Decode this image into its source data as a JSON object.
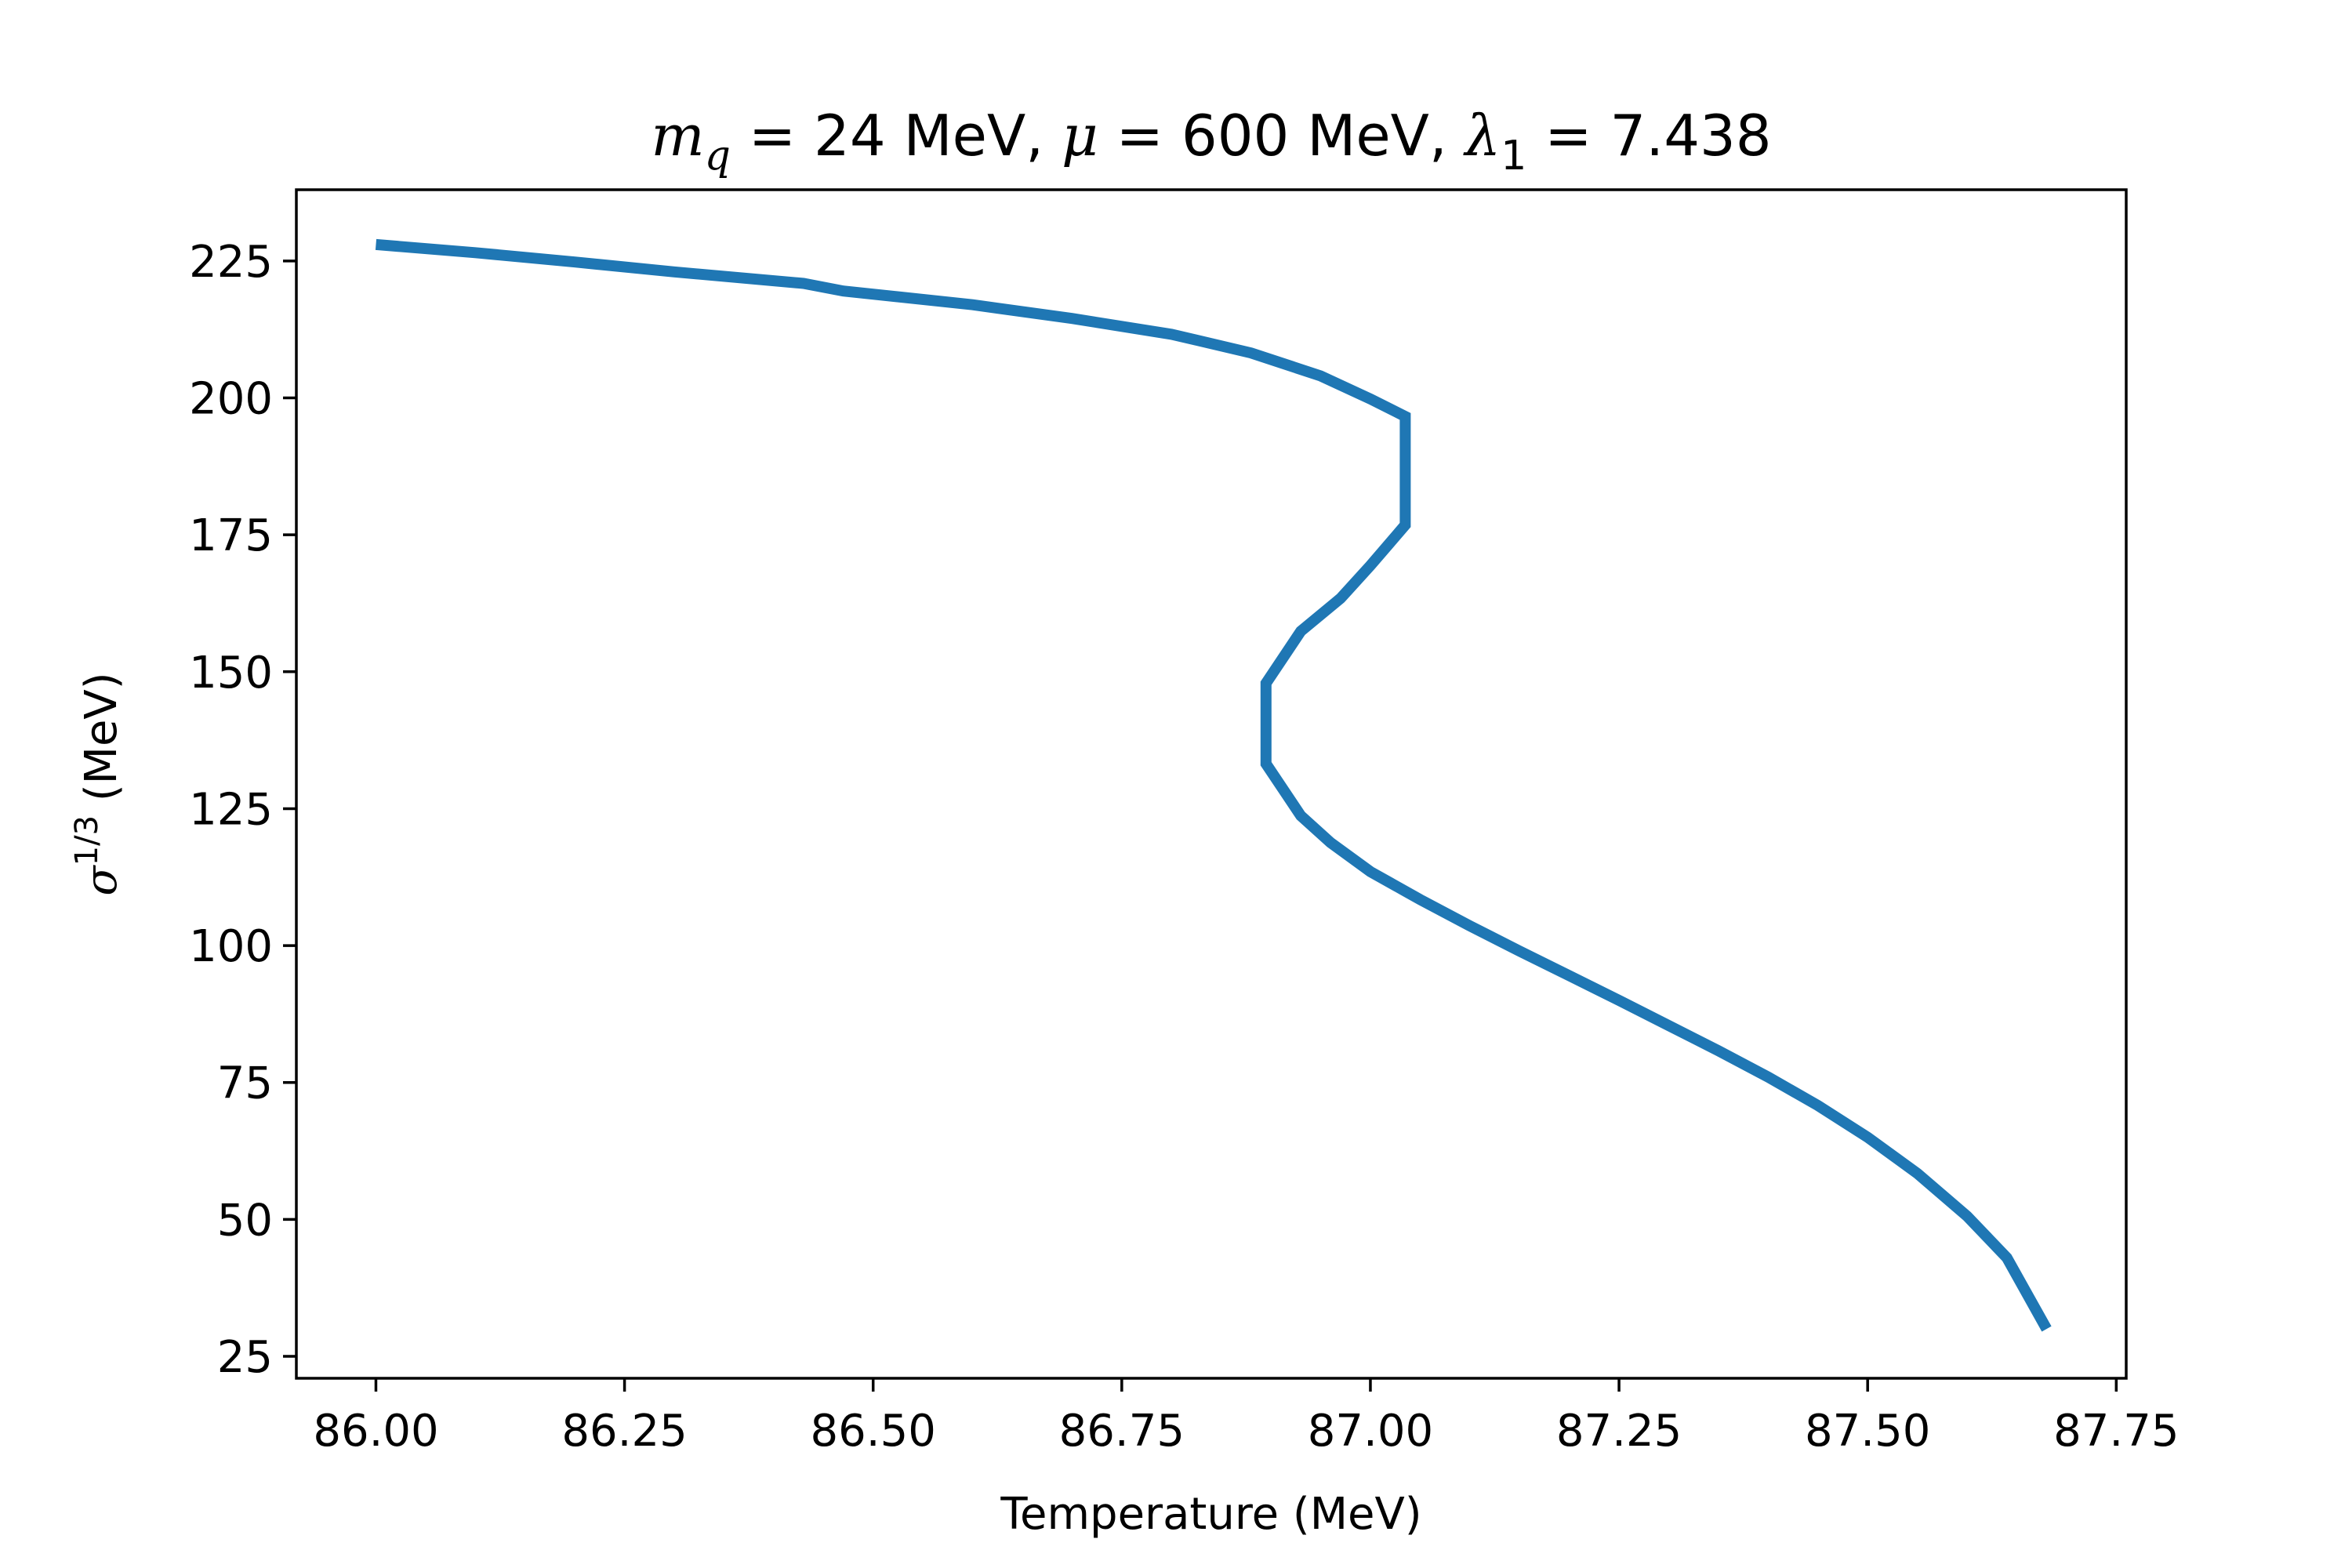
{
  "chart_data": {
    "type": "line",
    "title": {
      "parts": [
        {
          "text": "m",
          "math": true
        },
        {
          "text": "q",
          "math": true,
          "sub": true
        },
        {
          "text": " = 24 MeV, "
        },
        {
          "text": "μ",
          "math": true
        },
        {
          "text": " = 600 MeV, "
        },
        {
          "text": "λ",
          "math": true
        },
        {
          "text": "1",
          "sub": true
        },
        {
          "text": " = 7.438"
        }
      ]
    },
    "xlabel": "Temperature (MeV)",
    "ylabel": {
      "symbol": "σ",
      "superscript": "1/3",
      "suffix": " (MeV)"
    },
    "xlim": [
      85.92,
      87.76
    ],
    "ylim": [
      21,
      238
    ],
    "xticks": [
      86.0,
      86.25,
      86.5,
      86.75,
      87.0,
      87.25,
      87.5,
      87.75
    ],
    "xtick_labels": [
      "86.00",
      "86.25",
      "86.50",
      "86.75",
      "87.00",
      "87.25",
      "87.50",
      "87.75"
    ],
    "yticks": [
      25,
      50,
      75,
      100,
      125,
      150,
      175,
      200,
      225
    ],
    "ytick_labels": [
      "25",
      "50",
      "75",
      "100",
      "125",
      "150",
      "175",
      "200",
      "225"
    ],
    "grid": false,
    "series": [
      {
        "color": "#1f77b4",
        "x": [
          86.0,
          86.1,
          86.2,
          86.3,
          86.43,
          86.47,
          86.6,
          86.7,
          86.8,
          86.88,
          86.95,
          87.0,
          87.035,
          87.035,
          87.0,
          86.97,
          86.93,
          86.895,
          86.895,
          86.93,
          86.96,
          87.0,
          87.05,
          87.1,
          87.15,
          87.2,
          87.25,
          87.3,
          87.35,
          87.4,
          87.45,
          87.5,
          87.55,
          87.6,
          87.64,
          87.68
        ],
        "y": [
          228,
          226.5,
          224.8,
          223,
          220.9,
          219.5,
          217,
          214.5,
          211.6,
          208.2,
          204,
          199.8,
          196.6,
          176.8,
          169.4,
          163.4,
          157.4,
          147.9,
          133.2,
          123.7,
          118.8,
          113.5,
          108.4,
          103.6,
          99,
          94.5,
          90,
          85.4,
          80.8,
          76,
          70.8,
          65,
          58.4,
          50.6,
          43,
          30
        ]
      }
    ]
  }
}
